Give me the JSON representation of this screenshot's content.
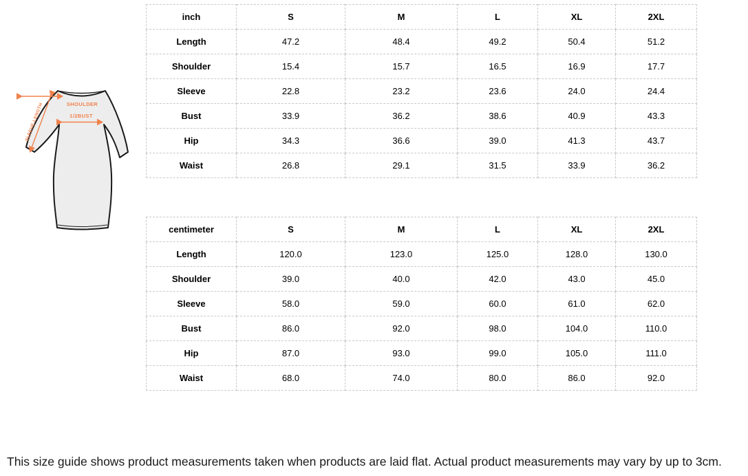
{
  "diagram": {
    "labels": {
      "shoulder": "SHOULDER",
      "half_bust": "1/2BUST",
      "sleeve_length": "SLEEVE LENGTH"
    },
    "colors": {
      "annotation": "#f0824c",
      "dress_fill": "#ededed",
      "dress_outline": "#1a1a1a"
    }
  },
  "tables": [
    {
      "unit_header": "inch",
      "size_headers": [
        "S",
        "M",
        "L",
        "XL",
        "2XL"
      ],
      "rows": [
        {
          "label": "Length",
          "values": [
            "47.2",
            "48.4",
            "49.2",
            "50.4",
            "51.2"
          ]
        },
        {
          "label": "Shoulder",
          "values": [
            "15.4",
            "15.7",
            "16.5",
            "16.9",
            "17.7"
          ]
        },
        {
          "label": "Sleeve",
          "values": [
            "22.8",
            "23.2",
            "23.6",
            "24.0",
            "24.4"
          ]
        },
        {
          "label": "Bust",
          "values": [
            "33.9",
            "36.2",
            "38.6",
            "40.9",
            "43.3"
          ]
        },
        {
          "label": "Hip",
          "values": [
            "34.3",
            "36.6",
            "39.0",
            "41.3",
            "43.7"
          ]
        },
        {
          "label": "Waist",
          "values": [
            "26.8",
            "29.1",
            "31.5",
            "33.9",
            "36.2"
          ]
        }
      ]
    },
    {
      "unit_header": "centimeter",
      "size_headers": [
        "S",
        "M",
        "L",
        "XL",
        "2XL"
      ],
      "rows": [
        {
          "label": "Length",
          "values": [
            "120.0",
            "123.0",
            "125.0",
            "128.0",
            "130.0"
          ]
        },
        {
          "label": "Shoulder",
          "values": [
            "39.0",
            "40.0",
            "42.0",
            "43.0",
            "45.0"
          ]
        },
        {
          "label": "Sleeve",
          "values": [
            "58.0",
            "59.0",
            "60.0",
            "61.0",
            "62.0"
          ]
        },
        {
          "label": "Bust",
          "values": [
            "86.0",
            "92.0",
            "98.0",
            "104.0",
            "110.0"
          ]
        },
        {
          "label": "Hip",
          "values": [
            "87.0",
            "93.0",
            "99.0",
            "105.0",
            "111.0"
          ]
        },
        {
          "label": "Waist",
          "values": [
            "68.0",
            "74.0",
            "80.0",
            "86.0",
            "92.0"
          ]
        }
      ]
    }
  ],
  "footer": {
    "note": "This size guide shows product measurements taken when products are laid flat. Actual product measurements may vary by up to 3cm."
  }
}
